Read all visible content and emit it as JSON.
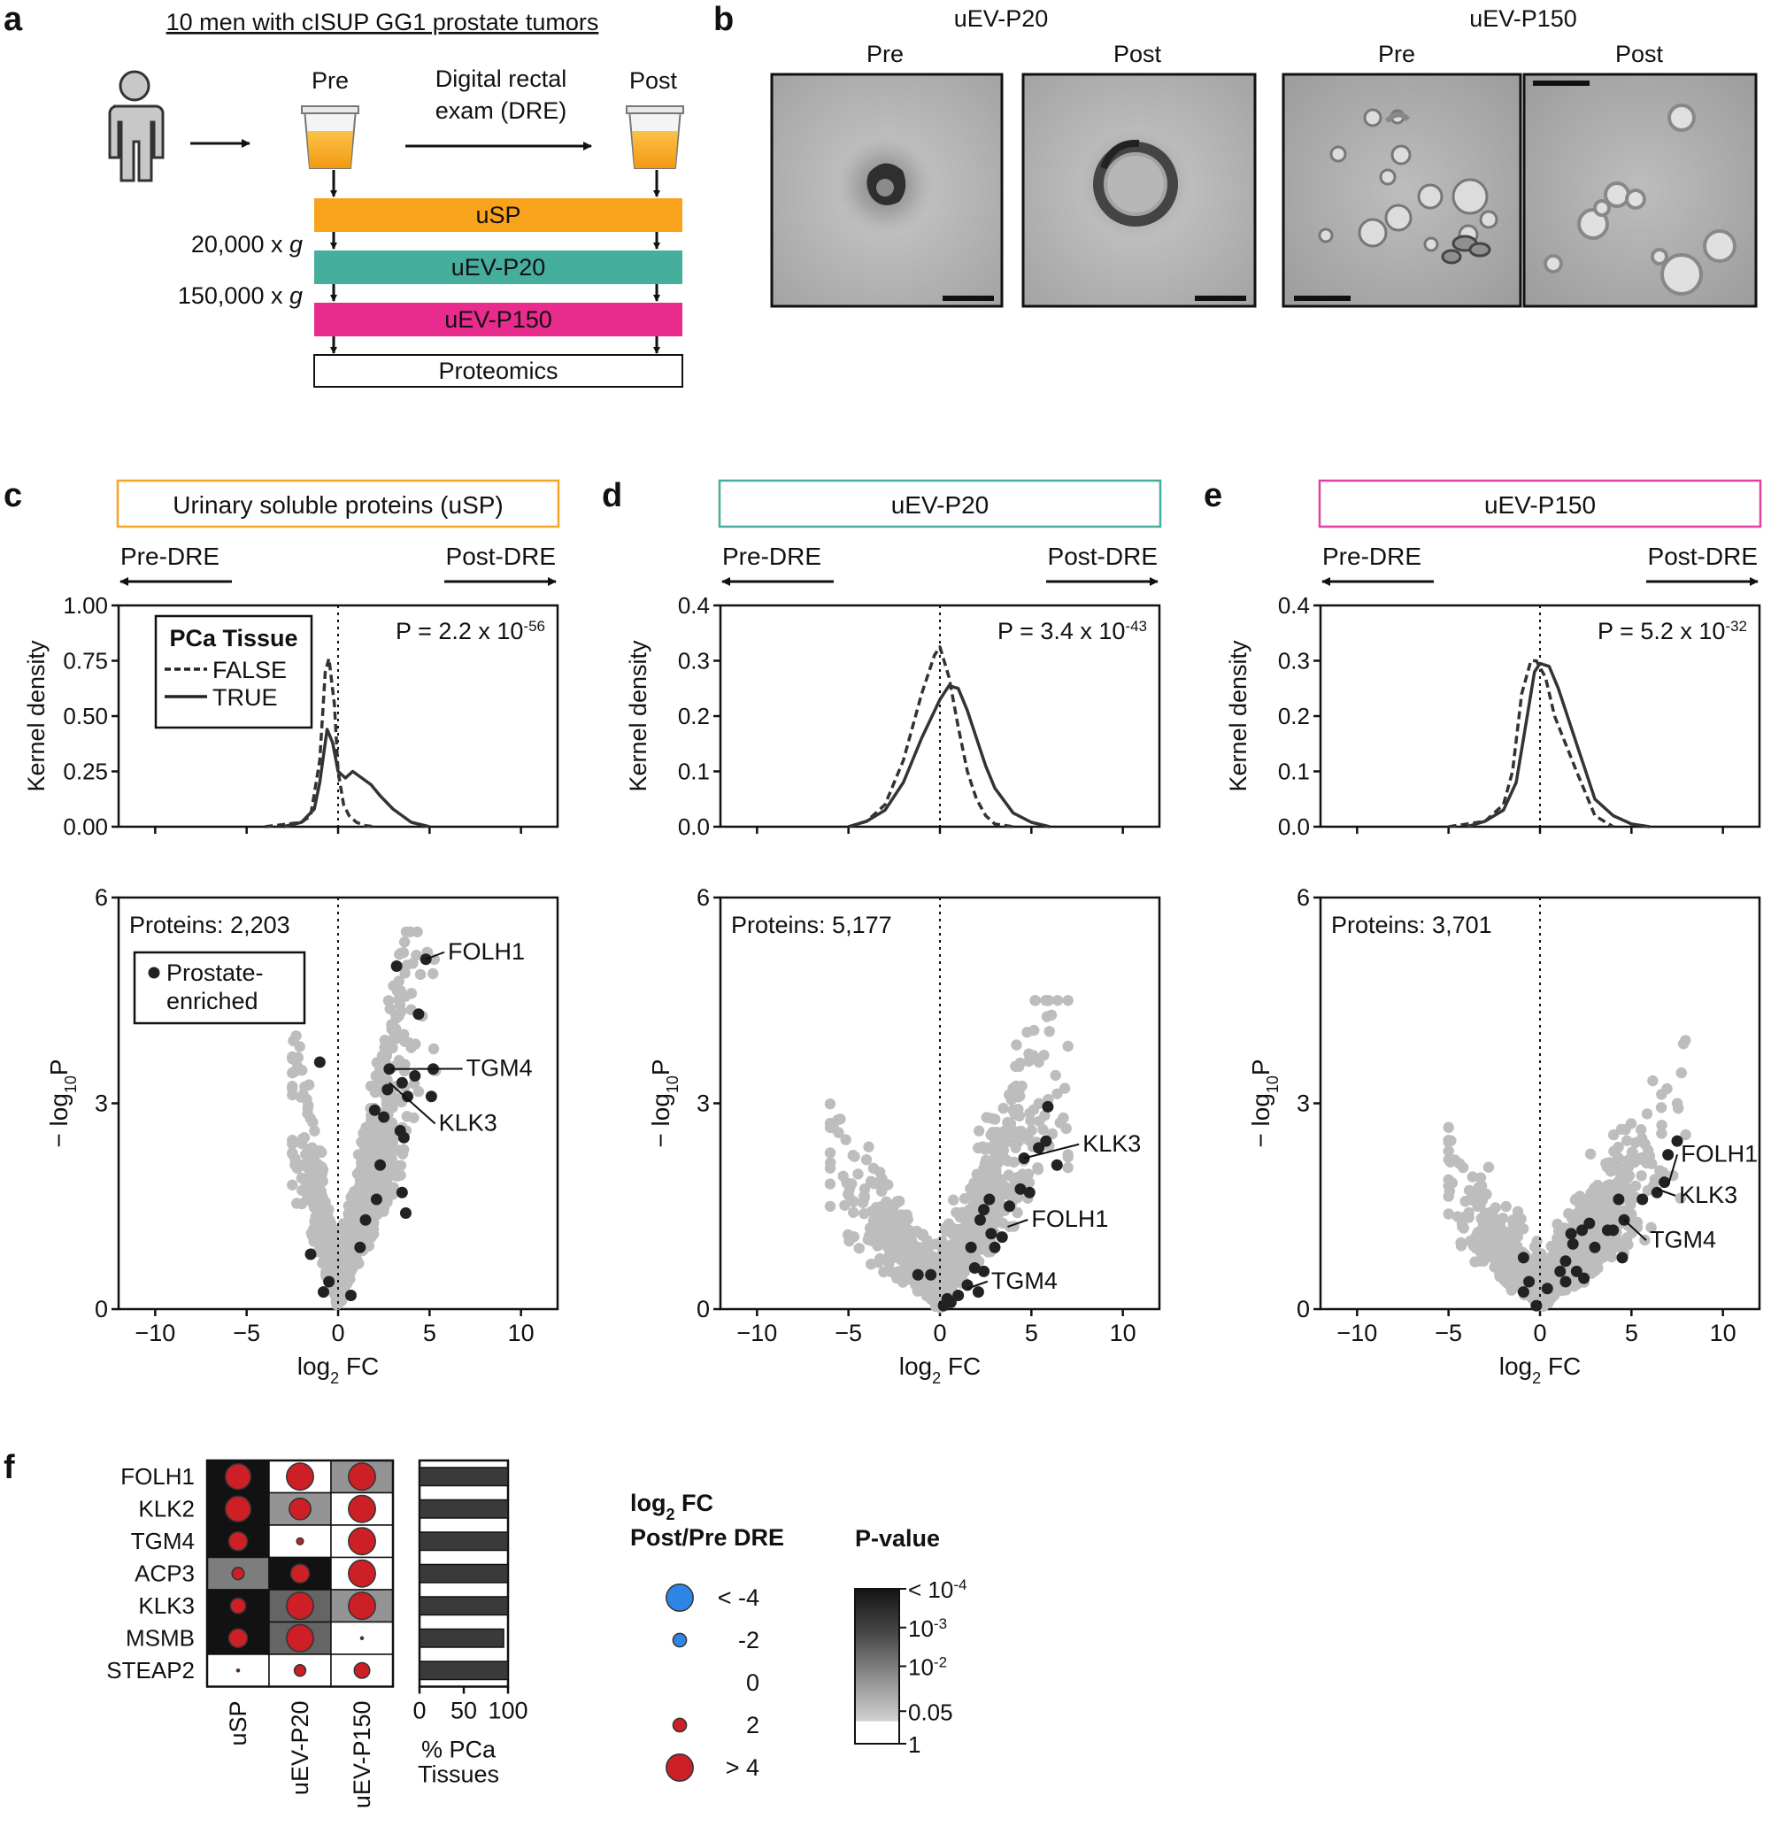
{
  "panel_letters": [
    "a",
    "b",
    "c",
    "d",
    "e",
    "f"
  ],
  "panel_a": {
    "title": "10 men with cISUP GG1 prostate tumors",
    "pre_label": "Pre",
    "post_label": "Post",
    "dre_line1": "Digital rectal",
    "dre_line2": "exam (DRE)",
    "g20_value": "20,000 x ",
    "g150_value": "150,000 x ",
    "g_symbol": "g",
    "bars": [
      {
        "label": "uSP",
        "color": "#f9a21b"
      },
      {
        "label": "uEV-P20",
        "color": "#45ae9c"
      },
      {
        "label": "uEV-P150",
        "color": "#e82b8d"
      },
      {
        "label": "Proteomics",
        "color": "#ffffff"
      }
    ]
  },
  "panel_b": {
    "groups": [
      {
        "title": "uEV-P20",
        "images": [
          "Pre",
          "Post"
        ]
      },
      {
        "title": "uEV-P150",
        "images": [
          "Pre",
          "Post"
        ]
      }
    ]
  },
  "chart_data": [
    {
      "type": "line",
      "panel": "c",
      "header": "Urinary soluble proteins (uSP)",
      "header_color": "#f5a623",
      "left_arrow": "Pre-DRE",
      "right_arrow": "Post-DRE",
      "ylabel": "Kernel density",
      "xlim": [
        -12,
        12
      ],
      "ylim": [
        0,
        1.0
      ],
      "yticks": [
        "0.00",
        "0.25",
        "0.50",
        "0.75",
        "1.00"
      ],
      "legend_title": "PCa Tissue",
      "pval_text": "P = 2.2 x 10",
      "pval_exp": "-56",
      "series": [
        {
          "name": "FALSE",
          "dash": true,
          "x": [
            -4,
            -2,
            -1.5,
            -1,
            -0.7,
            -0.5,
            -0.2,
            0,
            0.3,
            0.6,
            1,
            1.5,
            2
          ],
          "y": [
            0,
            0.02,
            0.05,
            0.3,
            0.7,
            0.76,
            0.55,
            0.25,
            0.1,
            0.05,
            0.02,
            0.005,
            0
          ]
        },
        {
          "name": "TRUE",
          "dash": false,
          "x": [
            -3,
            -2,
            -1.3,
            -1,
            -0.6,
            -0.3,
            0,
            0.4,
            0.8,
            1.3,
            1.8,
            2.3,
            3,
            4,
            5
          ],
          "y": [
            0,
            0.02,
            0.08,
            0.2,
            0.44,
            0.38,
            0.25,
            0.22,
            0.25,
            0.22,
            0.19,
            0.14,
            0.08,
            0.02,
            0
          ]
        }
      ]
    },
    {
      "type": "scatter",
      "panel": "c",
      "ylabel": "− log",
      "ylabel_sub": "10",
      "ylabel_tail": "P",
      "xlabel": "log",
      "xlabel_sub": "2",
      "xlabel_tail": " FC",
      "xlim": [
        -12,
        12
      ],
      "ylim": [
        0,
        6
      ],
      "xticks": [
        -10,
        -5,
        0,
        5,
        10
      ],
      "yticks": [
        0,
        3,
        6
      ],
      "protein_count": "Proteins: 2,203",
      "legend_line1": "Prostate-",
      "legend_line2": "enriched",
      "cloud": {
        "x_range": [
          -2.5,
          5.5
        ],
        "y_max": 5.5,
        "slope_neg": 1.3,
        "slope_pos": 1.1
      },
      "enriched_points": [
        [
          4.8,
          5.1
        ],
        [
          3.2,
          5.0
        ],
        [
          4.4,
          4.3
        ],
        [
          2.8,
          3.5
        ],
        [
          3.5,
          3.3
        ],
        [
          4.2,
          3.4
        ],
        [
          5.2,
          3.5
        ],
        [
          3.8,
          3.1
        ],
        [
          5.1,
          3.1
        ],
        [
          -1.0,
          3.6
        ],
        [
          2.0,
          2.9
        ],
        [
          2.5,
          2.8
        ],
        [
          2.7,
          3.2
        ],
        [
          3.4,
          2.6
        ],
        [
          3.6,
          2.5
        ],
        [
          2.3,
          2.1
        ],
        [
          2.1,
          1.6
        ],
        [
          3.5,
          1.7
        ],
        [
          3.7,
          1.4
        ],
        [
          1.5,
          1.3
        ],
        [
          -1.5,
          0.8
        ],
        [
          -0.8,
          0.25
        ],
        [
          0.7,
          0.2
        ],
        [
          -0.5,
          0.4
        ],
        [
          1.2,
          0.9
        ]
      ],
      "labels": [
        {
          "text": "FOLH1",
          "x": 4.8,
          "y": 5.1,
          "tx": 6.0,
          "ty": 5.1
        },
        {
          "text": "TGM4",
          "x": 2.9,
          "y": 3.5,
          "tx": 7.0,
          "ty": 3.4
        },
        {
          "text": "KLK3",
          "x": 2.8,
          "y": 3.3,
          "tx": 5.5,
          "ty": 2.6
        }
      ]
    },
    {
      "type": "line",
      "panel": "d",
      "header": "uEV-P20",
      "header_color": "#45ae9c",
      "left_arrow": "Pre-DRE",
      "right_arrow": "Post-DRE",
      "ylabel": "Kernel density",
      "xlim": [
        -12,
        12
      ],
      "ylim": [
        0,
        0.4
      ],
      "yticks": [
        "0.0",
        "0.1",
        "0.2",
        "0.3",
        "0.4"
      ],
      "pval_text": "P = 3.4 x 10",
      "pval_exp": "-43",
      "series": [
        {
          "name": "FALSE",
          "dash": true,
          "x": [
            -5,
            -4,
            -3,
            -2,
            -1,
            -0.3,
            0,
            0.5,
            1,
            1.5,
            2,
            2.5,
            3,
            4
          ],
          "y": [
            0,
            0.01,
            0.04,
            0.12,
            0.24,
            0.31,
            0.325,
            0.27,
            0.18,
            0.1,
            0.05,
            0.02,
            0.005,
            0
          ]
        },
        {
          "name": "TRUE",
          "dash": false,
          "x": [
            -5,
            -4,
            -3,
            -2,
            -1,
            0,
            0.5,
            1,
            1.5,
            2,
            2.5,
            3,
            4,
            5,
            6
          ],
          "y": [
            0,
            0.01,
            0.03,
            0.08,
            0.16,
            0.23,
            0.255,
            0.25,
            0.21,
            0.16,
            0.11,
            0.07,
            0.025,
            0.008,
            0
          ]
        }
      ]
    },
    {
      "type": "scatter",
      "panel": "d",
      "ylabel": "− log",
      "ylabel_sub": "10",
      "ylabel_tail": "P",
      "xlabel": "log",
      "xlabel_sub": "2",
      "xlabel_tail": " FC",
      "xlim": [
        -12,
        12
      ],
      "ylim": [
        0,
        6
      ],
      "xticks": [
        -10,
        -5,
        0,
        5,
        10
      ],
      "yticks": [
        0,
        3,
        6
      ],
      "protein_count": "Proteins: 5,177",
      "cloud": {
        "x_range": [
          -6,
          7
        ],
        "y_max": 4.5,
        "slope_neg": 0.35,
        "slope_pos": 0.6
      },
      "enriched_points": [
        [
          5.9,
          2.95
        ],
        [
          5.8,
          2.45
        ],
        [
          6.4,
          2.1
        ],
        [
          5.4,
          2.35
        ],
        [
          4.6,
          2.2
        ],
        [
          4.4,
          1.75
        ],
        [
          4.9,
          1.7
        ],
        [
          2.7,
          1.6
        ],
        [
          2.4,
          1.45
        ],
        [
          2.2,
          1.3
        ],
        [
          2.8,
          1.1
        ],
        [
          3.0,
          0.9
        ],
        [
          3.4,
          1.05
        ],
        [
          1.7,
          0.9
        ],
        [
          1.9,
          0.6
        ],
        [
          2.4,
          0.55
        ],
        [
          1.5,
          0.35
        ],
        [
          1.0,
          0.2
        ],
        [
          0.4,
          0.15
        ],
        [
          -0.5,
          0.5
        ],
        [
          -1.2,
          0.5
        ],
        [
          0.2,
          0.05
        ],
        [
          0.6,
          0.1
        ],
        [
          2.1,
          0.25
        ],
        [
          3.8,
          1.5
        ]
      ],
      "labels": [
        {
          "text": "KLK3",
          "x": 4.6,
          "y": 2.2,
          "tx": 7.8,
          "ty": 2.3
        },
        {
          "text": "FOLH1",
          "x": 3.7,
          "y": 1.2,
          "tx": 5.0,
          "ty": 1.2
        },
        {
          "text": "TGM4",
          "x": 1.5,
          "y": 0.3,
          "tx": 2.8,
          "ty": 0.3
        }
      ]
    },
    {
      "type": "line",
      "panel": "e",
      "header": "uEV-P150",
      "header_color": "#e040a0",
      "left_arrow": "Pre-DRE",
      "right_arrow": "Post-DRE",
      "ylabel": "Kernel density",
      "xlim": [
        -12,
        12
      ],
      "ylim": [
        0,
        0.4
      ],
      "yticks": [
        "0.0",
        "0.1",
        "0.2",
        "0.3",
        "0.4"
      ],
      "pval_text": "P = 5.2 x 10",
      "pval_exp": "-32",
      "series": [
        {
          "name": "FALSE",
          "dash": true,
          "x": [
            -5,
            -3,
            -2,
            -1.5,
            -1,
            -0.5,
            -0.2,
            0.3,
            0.8,
            1.4,
            2,
            2.5,
            3,
            4
          ],
          "y": [
            0,
            0.01,
            0.04,
            0.1,
            0.24,
            0.3,
            0.3,
            0.27,
            0.2,
            0.15,
            0.1,
            0.06,
            0.02,
            0
          ]
        },
        {
          "name": "TRUE",
          "dash": false,
          "x": [
            -4,
            -3,
            -2,
            -1.3,
            -0.8,
            -0.3,
            0,
            0.5,
            1,
            1.5,
            2,
            2.5,
            3,
            4,
            5,
            6
          ],
          "y": [
            0,
            0.01,
            0.03,
            0.08,
            0.18,
            0.28,
            0.295,
            0.29,
            0.25,
            0.2,
            0.15,
            0.1,
            0.05,
            0.02,
            0.005,
            0
          ]
        }
      ]
    },
    {
      "type": "scatter",
      "panel": "e",
      "ylabel": "− log",
      "ylabel_sub": "10",
      "ylabel_tail": "P",
      "xlabel": "log",
      "xlabel_sub": "2",
      "xlabel_tail": " FC",
      "xlim": [
        -12,
        12
      ],
      "ylim": [
        0,
        6
      ],
      "xticks": [
        -10,
        -5,
        0,
        5,
        10
      ],
      "yticks": [
        0,
        3,
        6
      ],
      "protein_count": "Proteins: 3,701",
      "cloud": {
        "x_range": [
          -5,
          8
        ],
        "y_max": 4.8,
        "slope_neg": 0.35,
        "slope_pos": 0.35
      },
      "enriched_points": [
        [
          7.5,
          2.45
        ],
        [
          7.0,
          2.25
        ],
        [
          6.8,
          1.85
        ],
        [
          6.4,
          1.7
        ],
        [
          5.6,
          1.6
        ],
        [
          4.3,
          1.6
        ],
        [
          4.6,
          1.3
        ],
        [
          4.0,
          1.15
        ],
        [
          3.7,
          1.15
        ],
        [
          2.7,
          1.25
        ],
        [
          2.3,
          1.15
        ],
        [
          1.7,
          1.1
        ],
        [
          1.8,
          0.95
        ],
        [
          1.4,
          0.7
        ],
        [
          1.1,
          0.55
        ],
        [
          2.0,
          0.55
        ],
        [
          2.4,
          0.45
        ],
        [
          1.4,
          0.4
        ],
        [
          -0.9,
          0.75
        ],
        [
          -0.6,
          0.4
        ],
        [
          -0.2,
          0.05
        ],
        [
          0.4,
          0.3
        ],
        [
          -0.9,
          0.25
        ],
        [
          3.0,
          0.9
        ],
        [
          4.5,
          0.75
        ]
      ],
      "labels": [
        {
          "text": "FOLH1",
          "x": 7.0,
          "y": 1.8,
          "tx": 7.7,
          "ty": 2.15
        },
        {
          "text": "KLK3",
          "x": 6.4,
          "y": 1.75,
          "tx": 7.6,
          "ty": 1.55
        },
        {
          "text": "TGM4",
          "x": 4.6,
          "y": 1.3,
          "tx": 6.0,
          "ty": 0.9
        }
      ]
    },
    {
      "type": "heatmap",
      "panel": "f",
      "rows": [
        "FOLH1",
        "KLK2",
        "TGM4",
        "ACP3",
        "KLK3",
        "MSMB",
        "STEAP2"
      ],
      "cols": [
        "uSP",
        "uEV-P20",
        "uEV-P150"
      ],
      "log2fc": [
        [
          3.8,
          4.0,
          4.0
        ],
        [
          3.8,
          3.2,
          4.0
        ],
        [
          2.8,
          1.0,
          4.0
        ],
        [
          1.8,
          2.8,
          4.0
        ],
        [
          2.3,
          4.0,
          4.0
        ],
        [
          2.8,
          4.0,
          0.3
        ],
        [
          0.3,
          1.7,
          2.3
        ]
      ],
      "p_shade": [
        [
          0.0,
          1.0,
          0.55
        ],
        [
          0.0,
          0.55,
          1.0
        ],
        [
          0.0,
          1.0,
          1.0
        ],
        [
          0.45,
          0.0,
          1.0
        ],
        [
          0.0,
          0.35,
          0.55
        ],
        [
          0.0,
          0.35,
          1.0
        ],
        [
          1.0,
          1.0,
          1.0
        ]
      ],
      "pca_tissues_percent": [
        100,
        100,
        100,
        100,
        100,
        95,
        100
      ],
      "bar_xticks": [
        0,
        50,
        100
      ],
      "bar_xlabel_line1": "% PCa",
      "bar_xlabel_line2": "Tissues",
      "size_legend_title_line1": "log",
      "size_legend_sub": "2",
      "size_legend_tail": " FC",
      "size_legend_title_line2": "Post/Pre DRE",
      "size_legend": [
        {
          "label": "< -4",
          "value": -4,
          "color": "#2d86e6"
        },
        {
          "label": "-2",
          "value": -2,
          "color": "#2d86e6"
        },
        {
          "label": "0",
          "value": 0,
          "color": "#cc1f26"
        },
        {
          "label": "2",
          "value": 2,
          "color": "#cc1f26"
        },
        {
          "label": "> 4",
          "value": 4,
          "color": "#cc1f26"
        }
      ],
      "pvalue_legend_title": "P-value",
      "pvalue_ticks": [
        {
          "base": "< 10",
          "exp": "-4"
        },
        {
          "base": "10",
          "exp": "-3"
        },
        {
          "base": "10",
          "exp": "-2"
        },
        {
          "base": "0.05",
          "exp": ""
        },
        {
          "base": "1",
          "exp": ""
        }
      ]
    }
  ],
  "colors": {
    "cloud_gray": "#bdbdbd",
    "enriched_dark": "#222222",
    "fc_positive": "#cc1f26",
    "fc_negative": "#2d86e6"
  }
}
